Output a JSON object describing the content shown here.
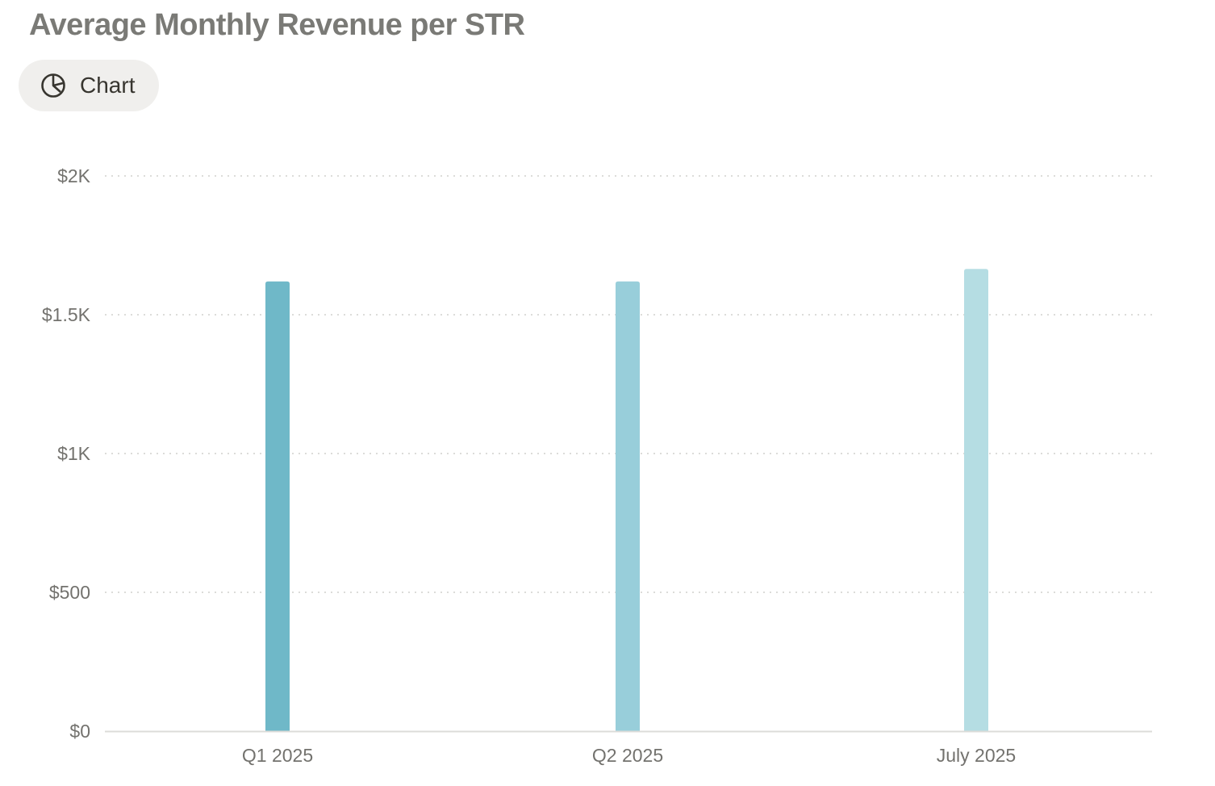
{
  "header": {
    "title": "Average Monthly Revenue per STR"
  },
  "view_button": {
    "label": "Chart",
    "icon": "pie-chart-icon"
  },
  "colors": {
    "bar_1": "#6fb8c8",
    "bar_2": "#98ceda",
    "bar_3": "#b5dde3",
    "grid": "#dcdcd9",
    "axis": "#dcdcd9",
    "text": "#73726e"
  },
  "chart_data": {
    "type": "bar",
    "title": "Average Monthly Revenue per STR",
    "categories": [
      "Q1 2025",
      "Q2 2025",
      "July 2025"
    ],
    "values": [
      1620,
      1620,
      1665
    ],
    "xlabel": "",
    "ylabel": "",
    "ylim": [
      0,
      2000
    ],
    "y_ticks": [
      {
        "value": 0,
        "label": "$0"
      },
      {
        "value": 500,
        "label": "$500"
      },
      {
        "value": 1000,
        "label": "$1K"
      },
      {
        "value": 1500,
        "label": "$1.5K"
      },
      {
        "value": 2000,
        "label": "$2K"
      }
    ],
    "grid": true,
    "legend": "none"
  }
}
